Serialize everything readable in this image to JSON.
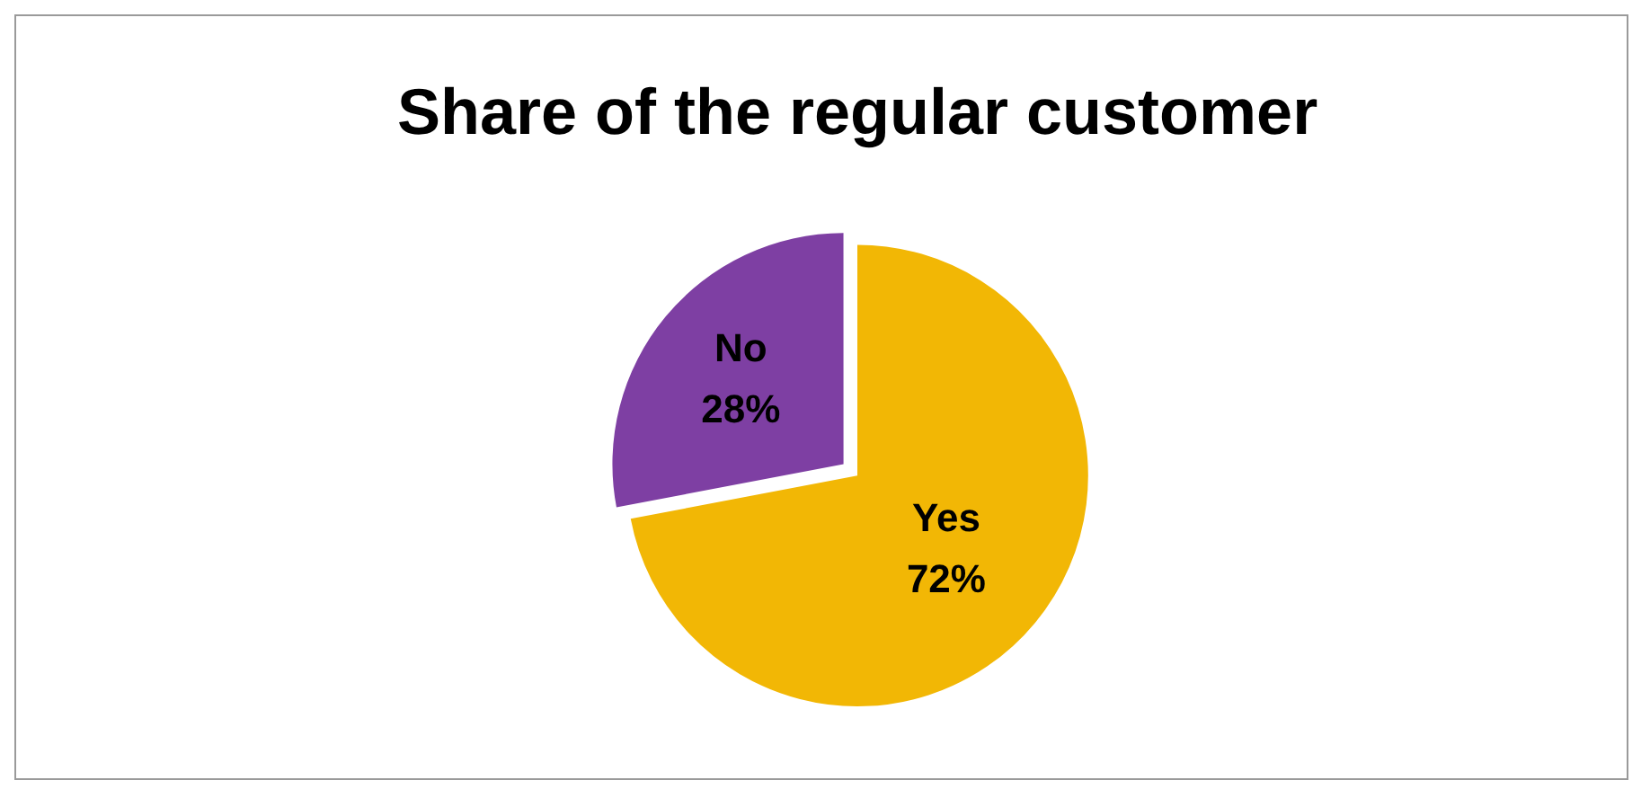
{
  "chart_data": {
    "type": "pie",
    "title": "Share of the regular customer",
    "categories": [
      "Yes",
      "No"
    ],
    "values": [
      72,
      28
    ],
    "value_labels": [
      "72%",
      "28%"
    ],
    "colors": [
      "#f2b705",
      "#7e3fa3"
    ],
    "legend": false
  }
}
